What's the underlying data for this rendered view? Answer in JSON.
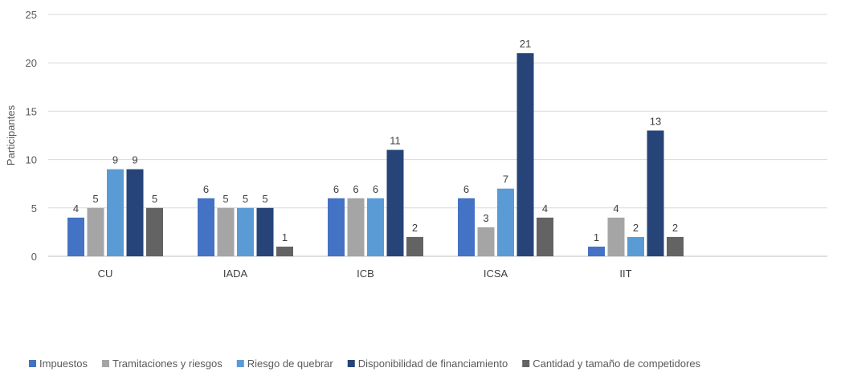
{
  "chart_data": {
    "type": "bar",
    "ylabel": "Participantes",
    "xlabel": "",
    "ylim": [
      0,
      25
    ],
    "yticks": [
      0,
      5,
      10,
      15,
      20,
      25
    ],
    "grid": true,
    "legend_position": "bottom",
    "categories": [
      "CU",
      "IADA",
      "ICB",
      "ICSA",
      "IIT"
    ],
    "series": [
      {
        "name": "Impuestos",
        "color": "#4472c4",
        "values": [
          4,
          6,
          6,
          6,
          1
        ]
      },
      {
        "name": "Tramitaciones y riesgos",
        "color": "#a5a5a5",
        "values": [
          5,
          5,
          6,
          3,
          4
        ]
      },
      {
        "name": "Riesgo de quebrar",
        "color": "#5b9bd5",
        "values": [
          9,
          5,
          6,
          7,
          2
        ]
      },
      {
        "name": "Disponibilidad de financiamiento",
        "color": "#264478",
        "values": [
          9,
          5,
          11,
          21,
          13
        ]
      },
      {
        "name": "Cantidad y tamaño de competidores",
        "color": "#636363",
        "values": [
          5,
          1,
          2,
          4,
          2
        ]
      }
    ]
  }
}
